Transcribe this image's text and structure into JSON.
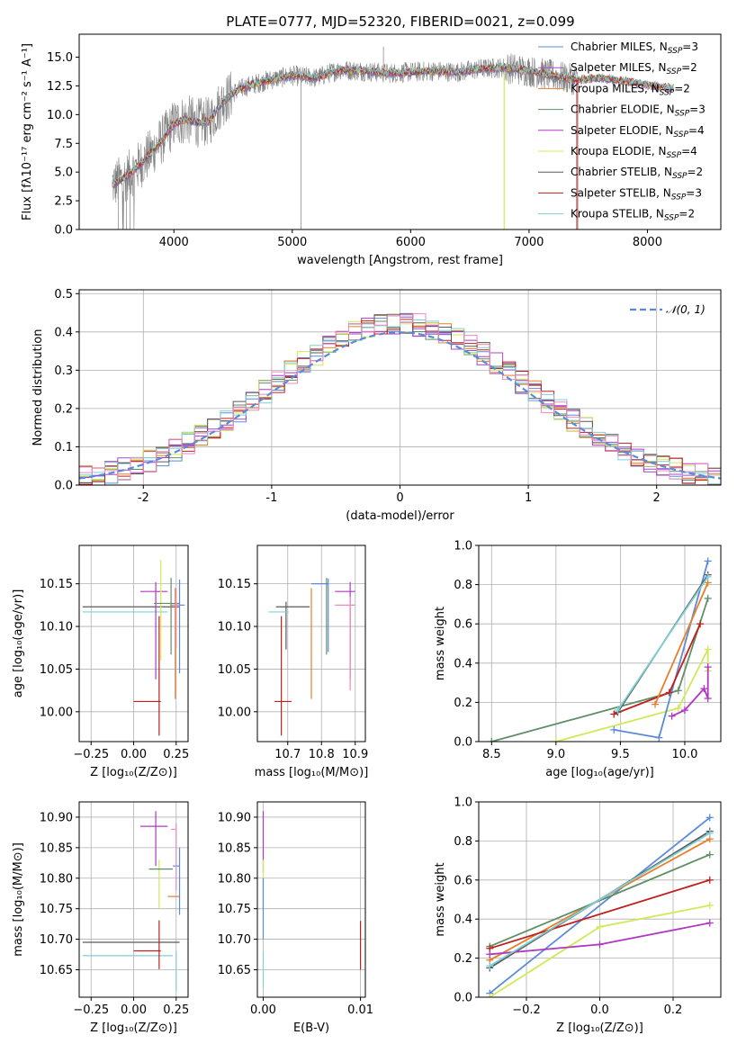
{
  "figure_title": "PLATE=0777, MJD=52320, FIBERID=0021, z=0.099",
  "colors": {
    "Chabrier MILES": "#5b8bd8",
    "Salpeter MILES": "#a848c8",
    "Kroupa MILES": "#e87e2a",
    "Chabrier ELODIE": "#5f8f66",
    "Salpeter ELODIE": "#b038c0",
    "Kroupa ELODIE": "#d2e857",
    "Chabrier STELIB": "#5a5a5a",
    "Salpeter STELIB": "#c0201c",
    "Kroupa STELIB": "#7fd0d6",
    "pink": "#ee88c0",
    "data": "#808080",
    "normal": "#5b8bd8"
  },
  "chart_data": [
    {
      "id": "spectrum",
      "type": "line",
      "title": "PLATE=0777, MJD=52320, FIBERID=0021, z=0.099",
      "xlabel": "wavelength [Angstrom, rest frame]",
      "ylabel": "Flux [fλ10⁻¹⁷ erg cm⁻² s⁻¹ A⁻¹]",
      "xlim": [
        3200,
        8620
      ],
      "ylim": [
        0,
        17.0
      ],
      "xticks": [
        4000,
        5000,
        6000,
        7000,
        8000
      ],
      "yticks": [
        0.0,
        2.5,
        5.0,
        7.5,
        10.0,
        12.5,
        15.0
      ],
      "grid": false,
      "legend_loc": "right",
      "legend": [
        "Chabrier MILES, N_SSP=3",
        "Salpeter MILES, N_SSP=2",
        "Kroupa MILES, N_SSP=2",
        "Chabrier ELODIE, N_SSP=3",
        "Salpeter ELODIE, N_SSP=4",
        "Kroupa ELODIE, N_SSP=4",
        "Chabrier STELIB, N_SSP=2",
        "Salpeter STELIB, N_SSP=3",
        "Kroupa STELIB, N_SSP=2"
      ],
      "legend_keys": [
        "Chabrier MILES",
        "Salpeter MILES",
        "Kroupa MILES",
        "Chabrier ELODIE",
        "Salpeter ELODIE",
        "Kroupa ELODIE",
        "Chabrier STELIB",
        "Salpeter STELIB",
        "Kroupa STELIB"
      ],
      "continuum": {
        "x": [
          3500,
          3600,
          3700,
          3800,
          3900,
          4000,
          4100,
          4200,
          4300,
          4400,
          4500,
          4600,
          4800,
          5000,
          5200,
          5400,
          5600,
          5800,
          6000,
          6200,
          6400,
          6600,
          6800,
          7000,
          7200,
          7400,
          7600,
          7800,
          8000,
          8200
        ],
        "y": [
          4.0,
          4.6,
          5.5,
          6.6,
          7.8,
          9.2,
          9.6,
          9.3,
          9.4,
          11.0,
          11.9,
          12.4,
          13.0,
          13.4,
          13.2,
          13.9,
          13.8,
          13.6,
          13.7,
          13.8,
          13.7,
          14.0,
          14.1,
          13.8,
          13.4,
          13.0,
          13.2,
          12.9,
          12.6,
          12.3
        ]
      },
      "data_x_range": [
        3480,
        7410
      ],
      "data_spikes": [
        {
          "x": 3530,
          "y": 0
        },
        {
          "x": 3600,
          "y": 0
        },
        {
          "x": 3630,
          "y": 0
        },
        {
          "x": 5075,
          "y": 0
        },
        {
          "x": 5770,
          "y": 15.9
        },
        {
          "x": 7400,
          "y": 0
        }
      ],
      "model_drop": {
        "x": 6790,
        "y": 0
      }
    },
    {
      "id": "residuals",
      "type": "histogram",
      "xlabel": "(data-model)/error",
      "ylabel": "Normed distribution",
      "xlim": [
        -2.5,
        2.5
      ],
      "ylim": [
        0,
        0.51
      ],
      "xticks": [
        -2,
        -1,
        0,
        1,
        2
      ],
      "yticks": [
        0.0,
        0.1,
        0.2,
        0.3,
        0.4,
        0.5
      ],
      "grid": true,
      "legend_loc": "upper right",
      "legend": [
        "𝒩(0, 1)"
      ],
      "bin_width": 0.1,
      "reference_curve": "normal(0,1)"
    },
    {
      "id": "age_vs_Z",
      "type": "errorbar",
      "xlabel": "Z [log₁₀(Z/Z⊙)]",
      "ylabel": "age  [log₁₀(age/yr)]",
      "xlim": [
        -0.32,
        0.32
      ],
      "ylim": [
        9.965,
        10.195
      ],
      "xticks": [
        -0.25,
        0.0,
        0.25
      ],
      "xtick_labels": [
        "−0.25",
        "0.00",
        "0.25"
      ],
      "yticks": [
        10.0,
        10.05,
        10.1,
        10.15
      ],
      "ytick_labels": [
        "10.00",
        "10.05",
        "10.10",
        "10.15"
      ],
      "grid": true,
      "points": [
        {
          "model": "Chabrier STELIB",
          "x": 0.0,
          "y": 10.123,
          "xerr": [
            0.3,
            0.27
          ],
          "yerr": [
            0.0,
            0.0
          ]
        },
        {
          "model": "Kroupa STELIB",
          "x": 0.0,
          "y": 10.117,
          "xerr": [
            0.3,
            0.2
          ],
          "yerr": [
            0.0,
            0.0
          ]
        },
        {
          "model": "Salpeter STELIB",
          "x": 0.11,
          "y": 10.012,
          "xerr": [
            0.11,
            0.05
          ],
          "yerr": [
            0.0,
            0.0
          ]
        },
        {
          "model": "Salpeter STELIB",
          "x": 0.15,
          "y": 10.012,
          "xerr": [
            0.0,
            0.0
          ],
          "yerr": [
            0.04,
            0.1
          ]
        },
        {
          "model": "Salpeter ELODIE",
          "x": 0.13,
          "y": 10.141,
          "xerr": [
            0.09,
            0.07
          ],
          "yerr": [
            0.103,
            0.011
          ]
        },
        {
          "model": "Kroupa ELODIE",
          "x": 0.16,
          "y": 10.1,
          "xerr": [
            0.0,
            0.0
          ],
          "yerr": [
            0.04,
            0.078
          ]
        },
        {
          "model": "Chabrier ELODIE",
          "x": 0.22,
          "y": 10.127,
          "xerr": [
            0.1,
            0.05
          ],
          "yerr": [
            0.06,
            0.03
          ]
        },
        {
          "model": "Kroupa MILES",
          "x": 0.245,
          "y": 10.125,
          "xerr": [
            0.03,
            0.02
          ],
          "yerr": [
            0.11,
            0.02
          ]
        },
        {
          "model": "Chabrier MILES",
          "x": 0.27,
          "y": 10.125,
          "xerr": [
            0.03,
            0.03
          ],
          "yerr": [
            0.08,
            0.03
          ]
        },
        {
          "model": "pink",
          "x": 0.25,
          "y": 10.125,
          "xerr": [
            0.02,
            0.02
          ],
          "yerr": [
            0.05,
            0.02
          ]
        }
      ]
    },
    {
      "id": "age_vs_mass",
      "type": "errorbar",
      "xlabel": "mass [log₁₀(M/M⊙)]",
      "ylabel": "",
      "xlim": [
        10.61,
        10.93
      ],
      "ylim": [
        9.965,
        10.195
      ],
      "xticks": [
        10.7,
        10.8,
        10.9
      ],
      "xtick_labels": [
        "10.7",
        "10.8",
        "10.9"
      ],
      "yticks": [
        10.0,
        10.05,
        10.1,
        10.15
      ],
      "ytick_labels": [
        "10.00",
        "10.05",
        "10.10",
        "10.15"
      ],
      "grid": true,
      "points": [
        {
          "model": "Chabrier STELIB",
          "x": 10.695,
          "y": 10.123,
          "xerr": [
            0.03,
            0.07
          ],
          "yerr": [
            0.05,
            0.006
          ]
        },
        {
          "model": "Kroupa STELIB",
          "x": 10.673,
          "y": 10.117,
          "xerr": [
            0.03,
            0.03
          ],
          "yerr": [
            0.0,
            0.0
          ]
        },
        {
          "model": "Salpeter STELIB",
          "x": 10.681,
          "y": 10.012,
          "xerr": [
            0.02,
            0.03
          ],
          "yerr": [
            0.04,
            0.1
          ]
        },
        {
          "model": "Kroupa MILES",
          "x": 10.77,
          "y": 10.125,
          "xerr": [
            0.0,
            0.0
          ],
          "yerr": [
            0.11,
            0.02
          ]
        },
        {
          "model": "Chabrier MILES",
          "x": 10.82,
          "y": 10.15,
          "xerr": [
            0.05,
            0.0
          ],
          "yerr": [
            0.08,
            0.006
          ]
        },
        {
          "model": "Chabrier ELODIE",
          "x": 10.815,
          "y": 10.127,
          "xerr": [
            0.0,
            0.0
          ],
          "yerr": [
            0.06,
            0.03
          ]
        },
        {
          "model": "Salpeter ELODIE",
          "x": 10.885,
          "y": 10.141,
          "xerr": [
            0.045,
            0.015
          ],
          "yerr": [
            0.103,
            0.011
          ]
        },
        {
          "model": "pink",
          "x": 10.885,
          "y": 10.125,
          "xerr": [
            0.045,
            0.015
          ],
          "yerr": [
            0.1,
            0.01
          ]
        },
        {
          "model": "Kroupa ELODIE",
          "x": 10.8,
          "y": 10.1,
          "xerr": [
            0.0,
            0.0
          ],
          "yerr": [
            0.0,
            0.0
          ]
        }
      ]
    },
    {
      "id": "weight_vs_age",
      "type": "line",
      "xlabel": "age  [log₁₀(age/yr)]",
      "ylabel": "mass weight",
      "xlim": [
        8.4,
        10.28
      ],
      "ylim": [
        0,
        1.0
      ],
      "xticks": [
        8.5,
        9.0,
        9.5,
        10.0
      ],
      "xtick_labels": [
        "8.5",
        "9.0",
        "9.5",
        "10.0"
      ],
      "yticks": [
        0.0,
        0.2,
        0.4,
        0.6,
        0.8,
        1.0
      ],
      "ytick_labels": [
        "0.0",
        "0.2",
        "0.4",
        "0.6",
        "0.8",
        "1.0"
      ],
      "grid": true,
      "series": [
        {
          "model": "Chabrier ELODIE",
          "x": [
            8.5,
            9.95,
            10.18
          ],
          "y": [
            0.0,
            0.26,
            0.73
          ]
        },
        {
          "model": "Kroupa ELODIE",
          "x": [
            9.0,
            9.95,
            10.18,
            10.18
          ],
          "y": [
            0.0,
            0.17,
            0.47,
            0.36
          ]
        },
        {
          "model": "Salpeter ELODIE",
          "x": [
            9.9,
            10.0,
            10.15,
            10.18,
            10.18
          ],
          "y": [
            0.13,
            0.16,
            0.27,
            0.22,
            0.38
          ]
        },
        {
          "model": "Chabrier MILES",
          "x": [
            9.45,
            9.8,
            10.18
          ],
          "y": [
            0.06,
            0.02,
            0.92
          ]
        },
        {
          "model": "Salpeter STELIB",
          "x": [
            9.45,
            9.88,
            10.12
          ],
          "y": [
            0.14,
            0.25,
            0.6
          ]
        },
        {
          "model": "Kroupa MILES",
          "x": [
            9.77,
            10.18
          ],
          "y": [
            0.19,
            0.81
          ]
        },
        {
          "model": "Chabrier STELIB",
          "x": [
            9.48,
            10.18
          ],
          "y": [
            0.15,
            0.85
          ]
        },
        {
          "model": "Kroupa STELIB",
          "x": [
            9.48,
            10.18
          ],
          "y": [
            0.16,
            0.84
          ]
        }
      ]
    },
    {
      "id": "mass_vs_Z",
      "type": "errorbar",
      "xlabel": "Z [log₁₀(Z/Z⊙)]",
      "ylabel": "mass [log₁₀(M/M⊙)]",
      "xlim": [
        -0.32,
        0.32
      ],
      "ylim": [
        10.605,
        10.925
      ],
      "xticks": [
        -0.25,
        0.0,
        0.25
      ],
      "xtick_labels": [
        "−0.25",
        "0.00",
        "0.25"
      ],
      "yticks": [
        10.65,
        10.7,
        10.75,
        10.8,
        10.85,
        10.9
      ],
      "ytick_labels": [
        "10.65",
        "10.70",
        "10.75",
        "10.80",
        "10.85",
        "10.90"
      ],
      "grid": true,
      "points": [
        {
          "model": "Chabrier STELIB",
          "x": 0.0,
          "y": 10.695,
          "xerr": [
            0.3,
            0.27
          ],
          "yerr": [
            0.0,
            0.0
          ]
        },
        {
          "model": "Kroupa STELIB",
          "x": 0.0,
          "y": 10.673,
          "xerr": [
            0.3,
            0.23
          ],
          "yerr": [
            0.0,
            0.0
          ]
        },
        {
          "model": "Salpeter STELIB",
          "x": 0.1,
          "y": 10.681,
          "xerr": [
            0.1,
            0.06
          ],
          "yerr": [
            0.0,
            0.0
          ]
        },
        {
          "model": "Salpeter STELIB",
          "x": 0.15,
          "y": 10.681,
          "xerr": [
            0.0,
            0.0
          ],
          "yerr": [
            0.03,
            0.05
          ]
        },
        {
          "model": "Salpeter ELODIE",
          "x": 0.13,
          "y": 10.885,
          "xerr": [
            0.09,
            0.07
          ],
          "yerr": [
            0.065,
            0.025
          ]
        },
        {
          "model": "Kroupa ELODIE",
          "x": 0.15,
          "y": 10.8,
          "xerr": [
            0.0,
            0.0
          ],
          "yerr": [
            0.05,
            0.03
          ]
        },
        {
          "model": "Chabrier ELODIE",
          "x": 0.15,
          "y": 10.815,
          "xerr": [
            0.06,
            0.08
          ],
          "yerr": [
            0.0,
            0.0
          ]
        },
        {
          "model": "Kroupa MILES",
          "x": 0.24,
          "y": 10.77,
          "xerr": [
            0.04,
            0.03
          ],
          "yerr": [
            0.0,
            0.0
          ]
        },
        {
          "model": "Chabrier MILES",
          "x": 0.27,
          "y": 10.82,
          "xerr": [
            0.04,
            0.0
          ],
          "yerr": [
            0.08,
            0.03
          ]
        },
        {
          "model": "pink",
          "x": 0.25,
          "y": 10.88,
          "xerr": [
            0.03,
            0.0
          ],
          "yerr": [
            0.1,
            0.01
          ]
        },
        {
          "model": "Kroupa STELIB",
          "x": 0.25,
          "y": 10.64,
          "xerr": [
            0.0,
            0.0
          ],
          "yerr": [
            0.025,
            0.04
          ]
        }
      ]
    },
    {
      "id": "mass_vs_ebv",
      "type": "errorbar",
      "xlabel": "E(B-V)",
      "ylabel": "",
      "xlim": [
        -0.0006,
        0.0105
      ],
      "ylim": [
        10.605,
        10.925
      ],
      "xticks": [
        0.0,
        0.01
      ],
      "xtick_labels": [
        "0.00",
        "0.01"
      ],
      "yticks": [
        10.65,
        10.7,
        10.75,
        10.8,
        10.85,
        10.9
      ],
      "ytick_labels": [
        "10.65",
        "10.70",
        "10.75",
        "10.80",
        "10.85",
        "10.90"
      ],
      "grid": true,
      "points": [
        {
          "model": "Salpeter ELODIE",
          "x": 0.0,
          "y": 10.86,
          "xerr": [
            0.0,
            0.0
          ],
          "yerr": [
            0.05,
            0.05
          ]
        },
        {
          "model": "Kroupa ELODIE",
          "x": 0.0,
          "y": 10.79,
          "xerr": [
            0.0,
            0.0
          ],
          "yerr": [
            0.04,
            0.04
          ]
        },
        {
          "model": "Chabrier MILES",
          "x": 0.0,
          "y": 10.8,
          "xerr": [
            0.0,
            0.0
          ],
          "yerr": [
            0.1,
            0.0
          ]
        },
        {
          "model": "Kroupa STELIB",
          "x": 0.0,
          "y": 10.65,
          "xerr": [
            0.0,
            0.0
          ],
          "yerr": [
            0.03,
            0.03
          ]
        },
        {
          "model": "Salpeter STELIB",
          "x": 0.01,
          "y": 10.69,
          "xerr": [
            0.0,
            0.0
          ],
          "yerr": [
            0.04,
            0.04
          ]
        }
      ]
    },
    {
      "id": "weight_vs_Z",
      "type": "line",
      "xlabel": "Z [log₁₀(Z/Z⊙)]",
      "ylabel": "mass weight",
      "xlim": [
        -0.33,
        0.33
      ],
      "ylim": [
        0,
        1.0
      ],
      "xticks": [
        -0.2,
        0.0,
        0.2
      ],
      "xtick_labels": [
        "−0.2",
        "0.0",
        "0.2"
      ],
      "yticks": [
        0.0,
        0.2,
        0.4,
        0.6,
        0.8,
        1.0
      ],
      "ytick_labels": [
        "0.0",
        "0.2",
        "0.4",
        "0.6",
        "0.8",
        "1.0"
      ],
      "grid": true,
      "series": [
        {
          "model": "Chabrier MILES",
          "x": [
            -0.3,
            0.3
          ],
          "y": [
            0.02,
            0.92
          ]
        },
        {
          "model": "Kroupa MILES",
          "x": [
            -0.3,
            0.3
          ],
          "y": [
            0.19,
            0.81
          ]
        },
        {
          "model": "Chabrier STELIB",
          "x": [
            -0.3,
            0.3
          ],
          "y": [
            0.15,
            0.85
          ]
        },
        {
          "model": "Chabrier ELODIE",
          "x": [
            -0.3,
            0.3
          ],
          "y": [
            0.26,
            0.73
          ]
        },
        {
          "model": "Salpeter STELIB",
          "x": [
            -0.3,
            0.3
          ],
          "y": [
            0.25,
            0.6
          ]
        },
        {
          "model": "Kroupa ELODIE",
          "x": [
            -0.3,
            0.0,
            0.3
          ],
          "y": [
            0.0,
            0.36,
            0.47
          ]
        },
        {
          "model": "Salpeter ELODIE",
          "x": [
            -0.3,
            0.0,
            0.3
          ],
          "y": [
            0.22,
            0.27,
            0.38
          ]
        },
        {
          "model": "Kroupa STELIB",
          "x": [
            -0.3,
            0.3
          ],
          "y": [
            0.16,
            0.84
          ]
        }
      ]
    }
  ]
}
